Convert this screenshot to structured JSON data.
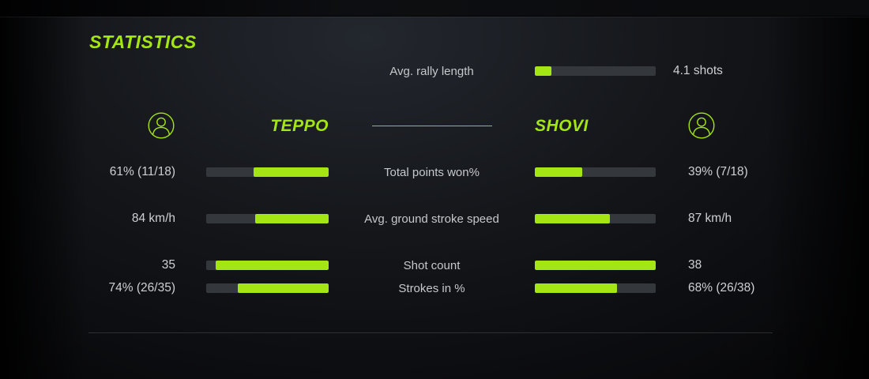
{
  "title": "STATISTICS",
  "colors": {
    "accent": "#a4e613",
    "bar_track": "#34373b",
    "text": "#ced0d3",
    "background": "#0b0c0f"
  },
  "chart_data": {
    "type": "bar",
    "orientation": "horizontal-mirrored-comparison",
    "title": "STATISTICS",
    "players": {
      "left": "TEPPO",
      "right": "SHOVI"
    },
    "rally": {
      "label": "Avg. rally length",
      "value": "4.1 shots",
      "numeric_shots": 4.1,
      "fill_pct": 14
    },
    "stats": [
      {
        "label": "Total points won%",
        "left": {
          "display": "61% (11/18)",
          "fill_pct": 61
        },
        "right": {
          "display": "39% (7/18)",
          "fill_pct": 39
        }
      },
      {
        "label": "Avg. ground stroke speed",
        "left": {
          "display": "84 km/h",
          "fill_pct": 60
        },
        "right": {
          "display": "87 km/h",
          "fill_pct": 62
        }
      },
      {
        "label": "Shot count",
        "left": {
          "display": "35",
          "fill_pct": 92
        },
        "right": {
          "display": "38",
          "fill_pct": 100
        }
      },
      {
        "label": "Strokes in %",
        "left": {
          "display": "74% (26/35)",
          "fill_pct": 74
        },
        "right": {
          "display": "68% (26/38)",
          "fill_pct": 68
        }
      }
    ]
  }
}
